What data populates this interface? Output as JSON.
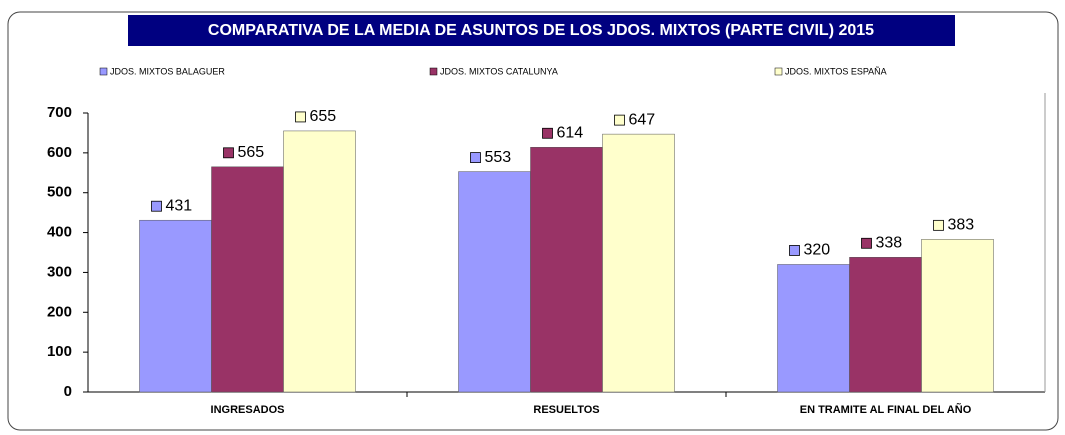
{
  "chart_data": {
    "type": "bar",
    "title": "COMPARATIVA DE LA MEDIA DE ASUNTOS DE LOS JDOS. MIXTOS (PARTE CIVIL)  2015",
    "categories": [
      "INGRESADOS",
      "RESUELTOS",
      "EN TRAMITE AL FINAL DEL AÑO"
    ],
    "series": [
      {
        "name": "JDOS. MIXTOS BALAGUER",
        "color": "#9999ff",
        "values": [
          431,
          553,
          320
        ]
      },
      {
        "name": "JDOS. MIXTOS CATALUNYA",
        "color": "#993366",
        "values": [
          565,
          614,
          338
        ]
      },
      {
        "name": "JDOS. MIXTOS ESPAÑA",
        "color": "#ffffcc",
        "values": [
          655,
          647,
          383
        ]
      }
    ],
    "ylim": [
      0,
      700
    ],
    "yticks": [
      0,
      100,
      200,
      300,
      400,
      500,
      600,
      700
    ],
    "grid": false,
    "legend": "top"
  }
}
